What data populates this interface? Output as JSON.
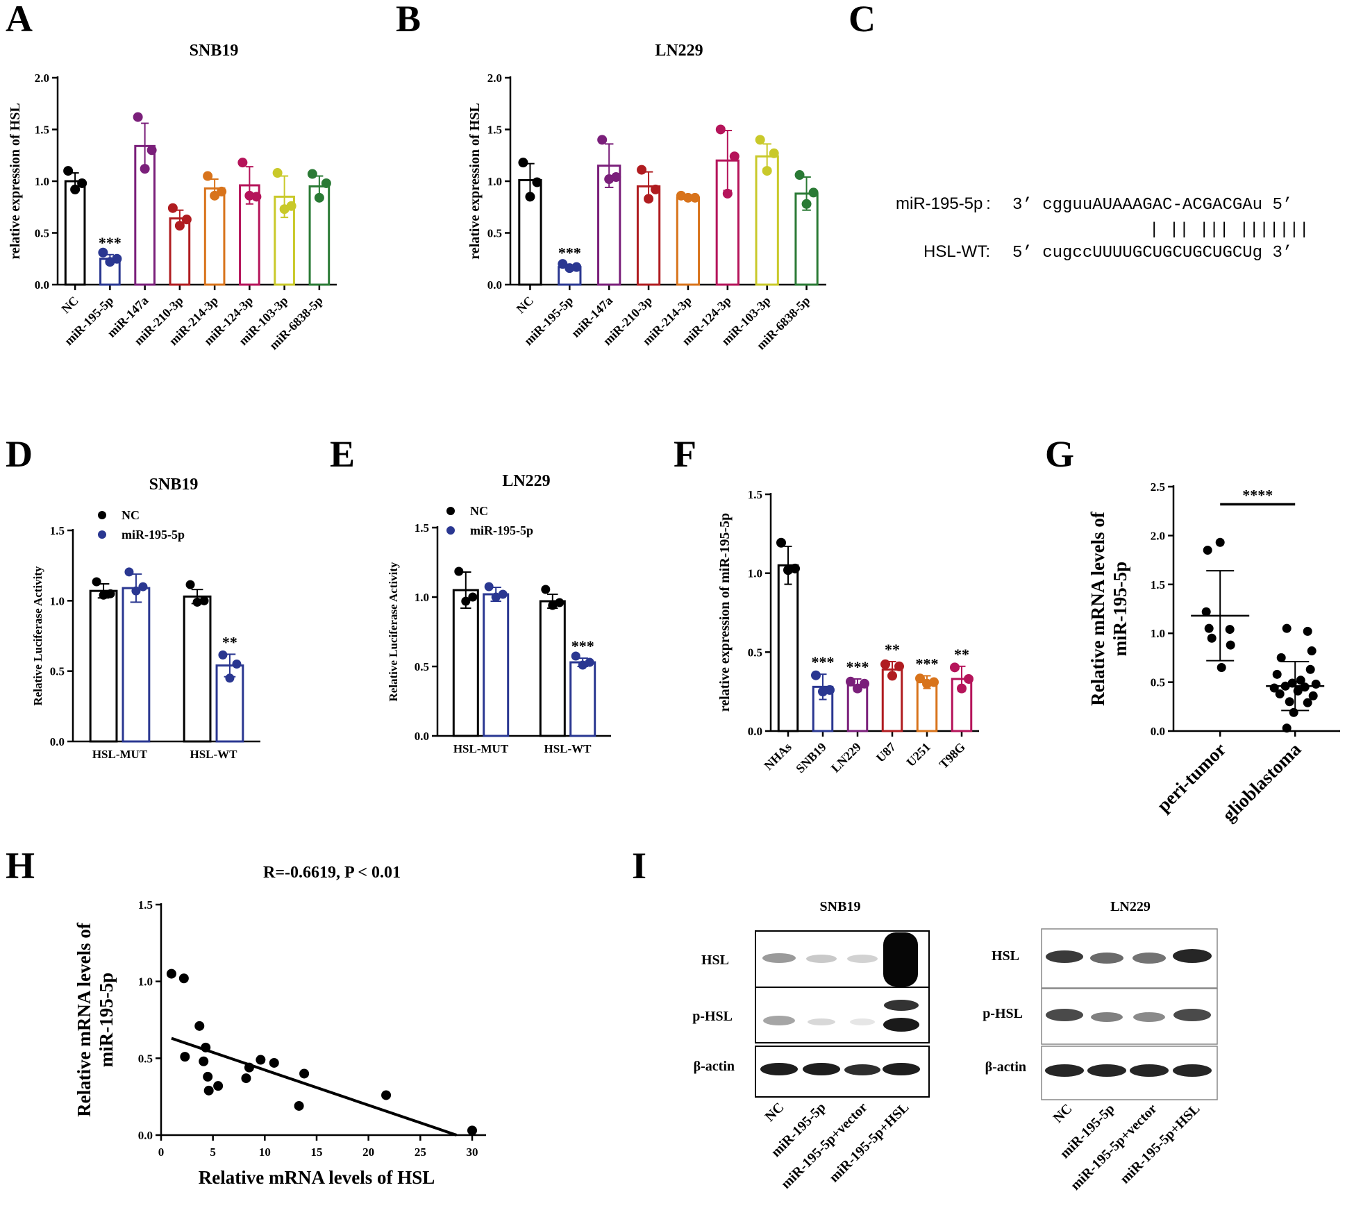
{
  "chart_data": [
    {
      "panel": "A",
      "type": "bar",
      "title": "SNB19",
      "ylabel": "relative expression of HSL",
      "ylim": [
        0,
        2.0
      ],
      "yticks": [
        "0.0",
        "0.5",
        "1.0",
        "1.5",
        "2.0"
      ],
      "categories": [
        "NC",
        "miR-195-5p",
        "miR-147a",
        "miR-210-3p",
        "miR-214-3p",
        "miR-124-3p",
        "miR-103-3p",
        "miR-6838-5p"
      ],
      "values": [
        1.0,
        0.25,
        1.34,
        0.64,
        0.93,
        0.96,
        0.85,
        0.95
      ],
      "errors": [
        0.08,
        0.04,
        0.22,
        0.08,
        0.09,
        0.18,
        0.2,
        0.1
      ],
      "points": [
        [
          1.08,
          0.98,
          0.92
        ],
        [
          0.29,
          0.25,
          0.22
        ],
        [
          1.6,
          1.3,
          1.12
        ],
        [
          0.72,
          0.63,
          0.57
        ],
        [
          1.03,
          0.9,
          0.86
        ],
        [
          1.16,
          0.85,
          0.86
        ],
        [
          1.06,
          0.76,
          0.73
        ],
        [
          1.05,
          0.98,
          0.84
        ]
      ],
      "colors": [
        "#000000",
        "#2a3791",
        "#7a1f7a",
        "#b01c20",
        "#d8731b",
        "#b5145a",
        "#c9c92a",
        "#2a7a35"
      ],
      "annotations": [
        "",
        "***",
        "",
        "",
        "",
        "",
        "",
        ""
      ]
    },
    {
      "panel": "B",
      "type": "bar",
      "title": "LN229",
      "ylabel": "relative expression of HSL",
      "ylim": [
        0,
        2.0
      ],
      "yticks": [
        "0.0",
        "0.5",
        "1.0",
        "1.5",
        "2.0"
      ],
      "categories": [
        "NC",
        "miR-195-5p",
        "miR-147a",
        "miR-210-3p",
        "miR-214-3p",
        "miR-124-3p",
        "miR-103-3p",
        "miR-6838-5p"
      ],
      "values": [
        1.01,
        0.17,
        1.15,
        0.95,
        0.84,
        1.2,
        1.24,
        0.88
      ],
      "errors": [
        0.16,
        0.02,
        0.21,
        0.14,
        0.01,
        0.29,
        0.12,
        0.16
      ],
      "points": [
        [
          1.16,
          0.99,
          0.85
        ],
        [
          0.18,
          0.17,
          0.16
        ],
        [
          1.38,
          1.04,
          1.02
        ],
        [
          1.09,
          0.92,
          0.83
        ],
        [
          0.84,
          0.84,
          0.84
        ],
        [
          1.48,
          1.24,
          0.88
        ],
        [
          1.38,
          1.27,
          1.1
        ],
        [
          1.04,
          0.89,
          0.78
        ]
      ],
      "colors": [
        "#000000",
        "#2a3791",
        "#7a1f7a",
        "#b01c20",
        "#d8731b",
        "#b5145a",
        "#c9c92a",
        "#2a7a35"
      ],
      "annotations": [
        "",
        "***",
        "",
        "",
        "",
        "",
        "",
        ""
      ]
    },
    {
      "panel": "D",
      "type": "bar",
      "title": "SNB19",
      "ylabel": "Relative Luciferase Activity",
      "ylim": [
        0,
        1.5
      ],
      "yticks": [
        "0.0",
        "0.5",
        "1.0",
        "1.5"
      ],
      "categories": [
        "HSL-MUT",
        "HSL-WT"
      ],
      "legend": [
        "NC",
        "miR-195-5p"
      ],
      "series": [
        {
          "name": "NC",
          "values": [
            1.07,
            1.03
          ],
          "errors": [
            0.05,
            0.05
          ],
          "points": [
            [
              1.12,
              1.05,
              1.04
            ],
            [
              1.1,
              1.0,
              0.99
            ]
          ]
        },
        {
          "name": "miR-195-5p",
          "values": [
            1.09,
            0.54
          ],
          "errors": [
            0.1,
            0.08
          ],
          "points": [
            [
              1.19,
              1.1,
              1.07
            ],
            [
              0.6,
              0.55,
              0.45
            ]
          ]
        }
      ],
      "annotations": [
        [
          "",
          ""
        ],
        [
          "",
          "**"
        ]
      ]
    },
    {
      "panel": "E",
      "type": "bar",
      "title": "LN229",
      "ylabel": "Relative Luciferase Activity",
      "ylim": [
        0,
        1.5
      ],
      "yticks": [
        "0.0",
        "0.5",
        "1.0",
        "1.5"
      ],
      "categories": [
        "HSL-MUT",
        "HSL-WT"
      ],
      "legend": [
        "NC",
        "miR-195-5p"
      ],
      "series": [
        {
          "name": "NC",
          "values": [
            1.05,
            0.97
          ],
          "errors": [
            0.13,
            0.05
          ],
          "points": [
            [
              1.17,
              1.0,
              0.97
            ],
            [
              1.04,
              0.96,
              0.94
            ]
          ]
        },
        {
          "name": "miR-195-5p",
          "values": [
            1.02,
            0.53
          ],
          "errors": [
            0.05,
            0.03
          ],
          "points": [
            [
              1.06,
              1.02,
              1.0
            ],
            [
              0.56,
              0.53,
              0.51
            ]
          ]
        }
      ],
      "annotations": [
        [
          "",
          ""
        ],
        [
          "",
          "***"
        ]
      ]
    },
    {
      "panel": "F",
      "type": "bar",
      "title": "",
      "ylabel": "relative expression of miR-195-5p",
      "ylim": [
        0,
        1.5
      ],
      "yticks": [
        "0.0",
        "0.5",
        "1.0",
        "1.5"
      ],
      "categories": [
        "NHAs",
        "SNB19",
        "LN229",
        "U87",
        "U251",
        "T98G"
      ],
      "values": [
        1.05,
        0.28,
        0.29,
        0.39,
        0.31,
        0.33
      ],
      "errors": [
        0.12,
        0.08,
        0.04,
        0.05,
        0.04,
        0.08
      ],
      "points": [
        [
          1.18,
          1.03,
          1.02
        ],
        [
          0.34,
          0.26,
          0.25
        ],
        [
          0.3,
          0.3,
          0.27
        ],
        [
          0.41,
          0.41,
          0.35
        ],
        [
          0.32,
          0.31,
          0.3
        ],
        [
          0.39,
          0.33,
          0.27
        ]
      ],
      "colors": [
        "#000000",
        "#2a3791",
        "#7a1f7a",
        "#b01c20",
        "#d8731b",
        "#b5145a"
      ],
      "annotations": [
        "",
        "***",
        "***",
        "**",
        "***",
        "**"
      ]
    },
    {
      "panel": "G",
      "type": "scatter",
      "title": "",
      "ylabel": "Relative mRNA levels of miR-195-5p",
      "ylim": [
        0,
        2.5
      ],
      "yticks": [
        "0.0",
        "0.5",
        "1.0",
        "1.5",
        "2.0",
        "2.5"
      ],
      "categories": [
        "peri-tumor",
        "glioblastoma"
      ],
      "groups": [
        {
          "name": "peri-tumor",
          "mean": 1.18,
          "sd": 0.46,
          "points": [
            1.93,
            1.85,
            1.22,
            1.05,
            1.04,
            0.95,
            0.88,
            0.65
          ]
        },
        {
          "name": "glioblastoma",
          "mean": 0.46,
          "sd": 0.25,
          "points": [
            1.05,
            1.02,
            0.82,
            0.75,
            0.63,
            0.58,
            0.52,
            0.49,
            0.48,
            0.46,
            0.45,
            0.44,
            0.41,
            0.38,
            0.36,
            0.3,
            0.29,
            0.19,
            0.03
          ]
        }
      ],
      "annotation": "****"
    },
    {
      "panel": "H",
      "type": "scatter",
      "title": "R=-0.6619, P < 0.01",
      "xlabel": "Relative mRNA levels of HSL",
      "ylabel": "Relative mRNA levels of miR-195-5p",
      "xlim": [
        0,
        30
      ],
      "ylim": [
        0,
        1.5
      ],
      "xticks": [
        "0",
        "5",
        "10",
        "15",
        "20",
        "25",
        "30"
      ],
      "yticks": [
        "0.0",
        "0.5",
        "1.0",
        "1.5"
      ],
      "x": [
        1.0,
        2.2,
        2.3,
        3.7,
        4.1,
        4.3,
        4.5,
        4.6,
        5.5,
        8.2,
        8.5,
        9.6,
        10.9,
        13.3,
        13.8,
        21.7,
        30.0
      ],
      "y": [
        1.05,
        1.02,
        0.51,
        0.71,
        0.48,
        0.57,
        0.38,
        0.29,
        0.32,
        0.37,
        0.44,
        0.49,
        0.47,
        0.19,
        0.4,
        0.26,
        0.03
      ],
      "fit": {
        "x": [
          1.0,
          28.5
        ],
        "y": [
          0.63,
          0.0
        ]
      }
    }
  ],
  "panel_c": {
    "label": "C",
    "row1_name": "miR-195-5p :",
    "row1_seq": "3’  cgguuAUAAAGAC-ACGACGAu 5’",
    "pairing": "|  ||  |||    |||||||",
    "row2_name": "HSL-WT:",
    "row2_seq": "5’  cugccUUUUGCUGCUGCUGCUg 3’"
  },
  "panel_i": {
    "label": "I",
    "blots": [
      {
        "title": "SNB19",
        "rows": [
          "HSL",
          "p-HSL",
          "β-actin"
        ],
        "lanes": [
          "NC",
          "miR-195-5p",
          "miR-195-5p+vector",
          "miR-195-5p+HSL"
        ]
      },
      {
        "title": "LN229",
        "rows": [
          "HSL",
          "p-HSL",
          "β-actin"
        ],
        "lanes": [
          "NC",
          "miR-195-5p",
          "miR-195-5p+vector",
          "miR-195-5p+HSL"
        ]
      }
    ]
  },
  "panel_labels": [
    "A",
    "B",
    "D",
    "E",
    "F",
    "G",
    "H"
  ]
}
